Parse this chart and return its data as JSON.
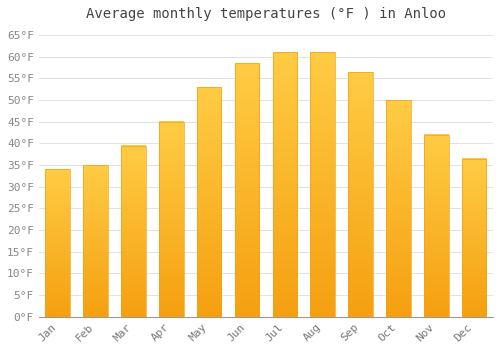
{
  "title": "Average monthly temperatures (°F ) in Anloo",
  "months": [
    "Jan",
    "Feb",
    "Mar",
    "Apr",
    "May",
    "Jun",
    "Jul",
    "Aug",
    "Sep",
    "Oct",
    "Nov",
    "Dec"
  ],
  "values": [
    34.0,
    35.0,
    39.5,
    45.0,
    53.0,
    58.5,
    61.0,
    61.0,
    56.5,
    50.0,
    42.0,
    36.5
  ],
  "bar_color_top": "#FFCC44",
  "bar_color_bottom": "#F5A010",
  "background_color": "#FFFFFF",
  "ylim": [
    0,
    67
  ],
  "yticks": [
    0,
    5,
    10,
    15,
    20,
    25,
    30,
    35,
    40,
    45,
    50,
    55,
    60,
    65
  ],
  "title_fontsize": 10,
  "tick_fontsize": 8,
  "grid_color": "#DDDDDD",
  "font_family": "monospace",
  "bar_width": 0.65
}
